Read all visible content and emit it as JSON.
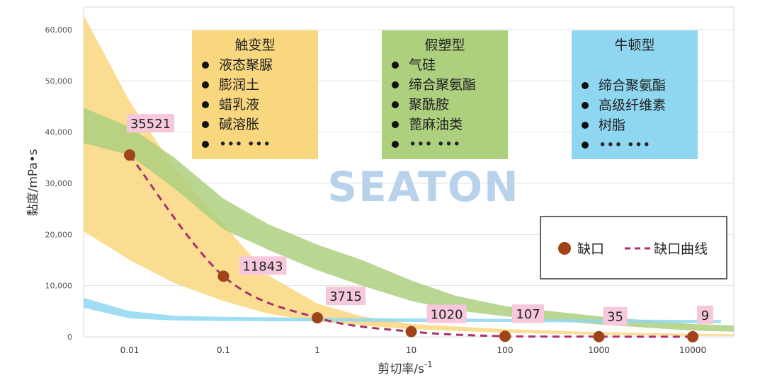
{
  "chart_data": {
    "type": "scatter",
    "x_scale": "log",
    "x": [
      0.01,
      0.1,
      1,
      10,
      100,
      1000,
      10000
    ],
    "y": [
      35521,
      11843,
      3715,
      1020,
      107,
      35,
      9
    ],
    "point_labels": [
      "35521",
      "11843",
      "3715",
      "1020",
      "107",
      "35",
      "9"
    ],
    "xlabel_main": "剪切率/s",
    "xlabel_sup": "-1",
    "ylabel": "黏度/mPa•s",
    "x_ticks": [
      "0.01",
      "0.1",
      "1",
      "10",
      "100",
      "1000",
      "10000"
    ],
    "y_ticks": [
      "0",
      "10,000",
      "20,000",
      "30,000",
      "40,000",
      "50,000",
      "60,000"
    ],
    "y_tick_values": [
      0,
      10000,
      20000,
      30000,
      40000,
      50000,
      60000
    ],
    "ylim": [
      0,
      60000
    ],
    "grid": true,
    "legend": {
      "position": "right",
      "series_marker_label": "缺口",
      "series_line_label": "缺口曲线"
    },
    "categories": [
      {
        "title": "触变型",
        "items": [
          "液态聚脲",
          "膨润土",
          "蜡乳液",
          "碱溶胀",
          "••• •••"
        ],
        "color": "#f9d77e",
        "band": {
          "x": [
            0.003,
            0.01,
            0.03,
            0.1,
            0.3,
            1,
            3,
            10,
            100,
            1000,
            10000,
            30000
          ],
          "upper": [
            64000,
            46000,
            33000,
            22000,
            12000,
            6500,
            4000,
            2500,
            1500,
            900,
            600,
            500
          ],
          "lower": [
            21000,
            15000,
            10500,
            7000,
            4500,
            3000,
            2200,
            1500,
            800,
            400,
            200,
            150
          ]
        }
      },
      {
        "title": "假塑型",
        "items": [
          "气硅",
          "缔合聚氨酯",
          "聚酰胺",
          "蓖麻油类",
          "••• •••"
        ],
        "color": "#add07f",
        "band": {
          "x": [
            0.003,
            0.01,
            0.03,
            0.1,
            0.3,
            1,
            3,
            10,
            30,
            100,
            1000,
            10000,
            30000
          ],
          "upper": [
            45000,
            41000,
            35000,
            27000,
            22000,
            18000,
            15000,
            11000,
            8000,
            6000,
            4000,
            2500,
            2200
          ],
          "lower": [
            38000,
            35500,
            29000,
            21000,
            17000,
            13000,
            10000,
            7000,
            5200,
            4000,
            2400,
            1200,
            1000
          ]
        }
      },
      {
        "title": "牛顿型",
        "items": [
          "缔合聚氨酯",
          "高级纤维素",
          "树脂",
          "••• •••"
        ],
        "color": "#8fd7f1",
        "band": {
          "x": [
            0.003,
            0.01,
            0.03,
            0.1,
            1,
            10,
            100,
            1000,
            10000,
            20000
          ],
          "upper": [
            7800,
            5000,
            4100,
            3900,
            3700,
            3600,
            3500,
            3400,
            3300,
            3300
          ],
          "lower": [
            5800,
            3600,
            3200,
            3100,
            3000,
            2900,
            2900,
            2800,
            2700,
            2700
          ]
        }
      }
    ],
    "series_color": "#a0421a",
    "curve_color": "#a8326f",
    "label_bg_color": "#f7c8dc"
  },
  "watermark": {
    "text": "SEATON",
    "color": "#b8d2ec"
  }
}
